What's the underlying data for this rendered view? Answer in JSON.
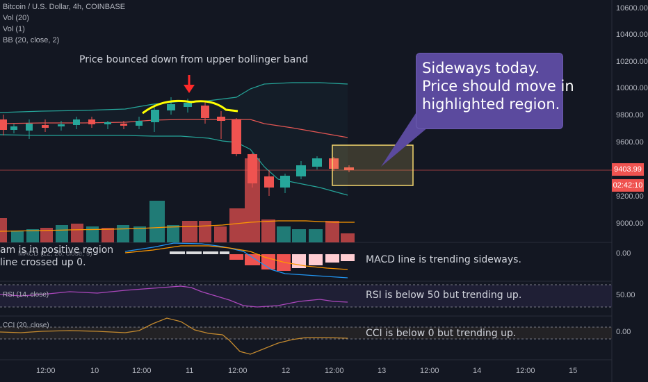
{
  "legend": {
    "symbol": "Bitcoin / U.S. Dollar, 4h, COINBASE",
    "vol20": "Vol (20)",
    "vol1": "Vol (1)",
    "bb": "BB (20, close, 2)"
  },
  "notes": {
    "bounce": "Price bounced down from upper bollinger band",
    "macd_left_1": "am is in positive region",
    "macd_left_2": "line crossed up 0.",
    "macd_right": "MACD line is trending sideways.",
    "rsi_right": "RSI is below 50 but trending up.",
    "cci_right": "CCI is below 0 but trending up."
  },
  "callout": {
    "line1": "Sideways today.",
    "line2": "Price should move in",
    "line3": "highlighted region."
  },
  "panes": {
    "macd_title": "MACD (12, 26, close, 9)",
    "rsi_title": "RSI (14, close)",
    "cci_title": "CCI (20, close)"
  },
  "price_axis": {
    "ticks": [
      "10600.00",
      "10400.00",
      "10200.00",
      "10000.00",
      "9800.00",
      "9600.00",
      "9200.00",
      "9000.00"
    ],
    "current_price": "9403.99",
    "countdown": "02:42:10",
    "macd_tick": "0.00",
    "rsi_tick": "50.00",
    "cci_tick": "0.00"
  },
  "time_axis": {
    "ticks": [
      "12:00",
      "10",
      "12:00",
      "11",
      "12:00",
      "12",
      "12:00",
      "13",
      "12:00",
      "14",
      "12:00",
      "15"
    ]
  },
  "colors": {
    "background": "#131722",
    "up_candle": "#26a69a",
    "down_candle": "#ef5350",
    "bb_band": "#26a69a",
    "bb_basis": "#ef5350",
    "highlight": "#f5d76e",
    "arrow": "#ff2a2a",
    "annotation_curve": "#ffff00",
    "callout": "#5b4a9e"
  }
}
